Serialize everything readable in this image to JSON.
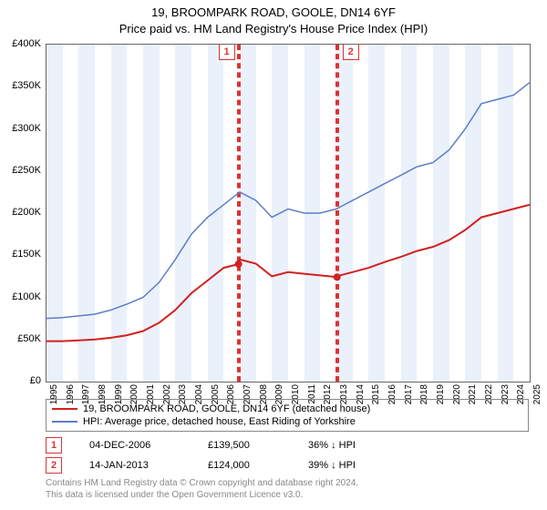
{
  "title_line1": "19, BROOMPARK ROAD, GOOLE, DN14 6YF",
  "title_line2": "Price paid vs. HM Land Registry's House Price Index (HPI)",
  "chart": {
    "type": "line",
    "background_color": "#ffffff",
    "grid_color": "#dddddd",
    "border_color": "#666666",
    "font_family": "Arial",
    "label_fontsize": 11,
    "xlim": [
      1995,
      2025
    ],
    "ylim": [
      0,
      400000
    ],
    "ytick_step": 50000,
    "yticks": [
      "£0",
      "£50K",
      "£100K",
      "£150K",
      "£200K",
      "£250K",
      "£300K",
      "£350K",
      "£400K"
    ],
    "xticks_years": [
      1995,
      1996,
      1997,
      1998,
      1999,
      2000,
      2001,
      2002,
      2003,
      2004,
      2005,
      2006,
      2007,
      2008,
      2009,
      2010,
      2011,
      2012,
      2013,
      2014,
      2015,
      2016,
      2017,
      2018,
      2019,
      2020,
      2021,
      2022,
      2023,
      2024,
      2025
    ],
    "background_bands": {
      "color": "#eaf1fb",
      "alt_color": "#ffffff"
    },
    "series": [
      {
        "name": "property",
        "label": "19, BROOMPARK ROAD, GOOLE, DN14 6YF (detached house)",
        "color": "#d32020",
        "line_width": 2,
        "points": [
          [
            1995,
            48000
          ],
          [
            1996,
            48000
          ],
          [
            1997,
            49000
          ],
          [
            1998,
            50000
          ],
          [
            1999,
            52000
          ],
          [
            2000,
            55000
          ],
          [
            2001,
            60000
          ],
          [
            2002,
            70000
          ],
          [
            2003,
            85000
          ],
          [
            2004,
            105000
          ],
          [
            2005,
            120000
          ],
          [
            2006,
            135000
          ],
          [
            2006.92,
            139500
          ],
          [
            2007,
            145000
          ],
          [
            2008,
            140000
          ],
          [
            2009,
            125000
          ],
          [
            2010,
            130000
          ],
          [
            2011,
            128000
          ],
          [
            2012,
            126000
          ],
          [
            2013.04,
            124000
          ],
          [
            2013,
            125000
          ],
          [
            2014,
            130000
          ],
          [
            2015,
            135000
          ],
          [
            2016,
            142000
          ],
          [
            2017,
            148000
          ],
          [
            2018,
            155000
          ],
          [
            2019,
            160000
          ],
          [
            2020,
            168000
          ],
          [
            2021,
            180000
          ],
          [
            2022,
            195000
          ],
          [
            2023,
            200000
          ],
          [
            2024,
            205000
          ],
          [
            2025,
            210000
          ]
        ]
      },
      {
        "name": "hpi",
        "label": "HPI: Average price, detached house, East Riding of Yorkshire",
        "color": "#5b7fc7",
        "line_width": 1.5,
        "points": [
          [
            1995,
            75000
          ],
          [
            1996,
            76000
          ],
          [
            1997,
            78000
          ],
          [
            1998,
            80000
          ],
          [
            1999,
            85000
          ],
          [
            2000,
            92000
          ],
          [
            2001,
            100000
          ],
          [
            2002,
            118000
          ],
          [
            2003,
            145000
          ],
          [
            2004,
            175000
          ],
          [
            2005,
            195000
          ],
          [
            2006,
            210000
          ],
          [
            2007,
            225000
          ],
          [
            2008,
            215000
          ],
          [
            2009,
            195000
          ],
          [
            2010,
            205000
          ],
          [
            2011,
            200000
          ],
          [
            2012,
            200000
          ],
          [
            2013,
            205000
          ],
          [
            2014,
            215000
          ],
          [
            2015,
            225000
          ],
          [
            2016,
            235000
          ],
          [
            2017,
            245000
          ],
          [
            2018,
            255000
          ],
          [
            2019,
            260000
          ],
          [
            2020,
            275000
          ],
          [
            2021,
            300000
          ],
          [
            2022,
            330000
          ],
          [
            2023,
            335000
          ],
          [
            2024,
            340000
          ],
          [
            2025,
            355000
          ]
        ]
      }
    ],
    "sales": [
      {
        "n": "1",
        "year": 2006.92,
        "label_x_offset": -22
      },
      {
        "n": "2",
        "year": 2013.04,
        "label_x_offset": 6
      }
    ],
    "sale_markers": [
      {
        "year": 2006.92,
        "value": 139500,
        "color": "#d32020"
      },
      {
        "year": 2013.04,
        "value": 124000,
        "color": "#d32020"
      }
    ]
  },
  "legend": [
    {
      "color": "#d32020",
      "text": "19, BROOMPARK ROAD, GOOLE, DN14 6YF (detached house)"
    },
    {
      "color": "#5b7fc7",
      "text": "HPI: Average price, detached house, East Riding of Yorkshire"
    }
  ],
  "sales_table": [
    {
      "n": "1",
      "date": "04-DEC-2006",
      "price": "£139,500",
      "delta": "36% ↓ HPI"
    },
    {
      "n": "2",
      "date": "14-JAN-2013",
      "price": "£124,000",
      "delta": "39% ↓ HPI"
    }
  ],
  "footer_line1": "Contains HM Land Registry data © Crown copyright and database right 2024.",
  "footer_line2": "This data is licensed under the Open Government Licence v3.0."
}
